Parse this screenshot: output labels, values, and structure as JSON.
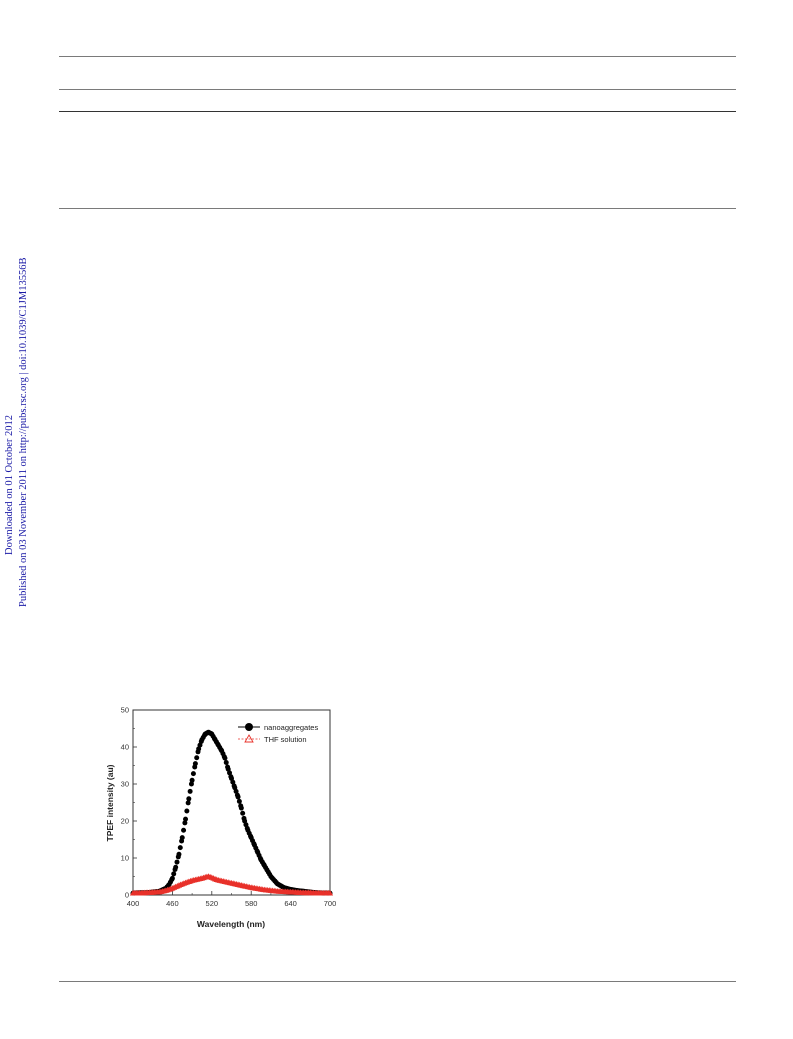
{
  "sidebar": {
    "downloaded": "Downloaded on 01 October 2012",
    "published": "Published on 03 November 2011 on http://pubs.rsc.org | doi:10.1039/C1JM13556B"
  },
  "colors": {
    "link": "#1a1aa6",
    "series_nanoaggregates": "#000000",
    "series_thf": "#e8312a"
  },
  "chart_data": {
    "type": "scatter",
    "xlabel": "Wavelength (nm)",
    "ylabel": "TPEF intensity (au)",
    "xlim": [
      400,
      700
    ],
    "ylim": [
      0,
      50
    ],
    "xticks": [
      400,
      460,
      520,
      580,
      640,
      700
    ],
    "yticks": [
      0,
      10,
      20,
      30,
      40,
      50
    ],
    "legend_position": "top-right",
    "series": [
      {
        "name": "nanoaggregates",
        "marker": "filled-circle",
        "color": "#000000",
        "x": [
          400,
          410,
          420,
          430,
          440,
          450,
          455,
          460,
          465,
          470,
          475,
          480,
          485,
          490,
          495,
          500,
          505,
          510,
          515,
          520,
          525,
          530,
          535,
          540,
          545,
          550,
          555,
          560,
          565,
          570,
          575,
          580,
          585,
          590,
          595,
          600,
          610,
          620,
          630,
          640,
          650,
          660,
          670,
          680,
          690,
          700
        ],
        "y": [
          0.5,
          0.6,
          0.6,
          0.8,
          1.0,
          1.8,
          2.8,
          4.5,
          7.5,
          11.0,
          15.5,
          20.5,
          26.0,
          31.0,
          35.5,
          39.5,
          42.0,
          43.5,
          44.0,
          43.5,
          42.0,
          40.5,
          39.0,
          37.0,
          34.0,
          31.5,
          29.0,
          26.5,
          23.5,
          20.0,
          17.5,
          15.5,
          13.5,
          11.5,
          9.5,
          8.0,
          5.0,
          3.0,
          2.0,
          1.5,
          1.2,
          1.0,
          0.8,
          0.6,
          0.5,
          0.5
        ]
      },
      {
        "name": "THF solution",
        "marker": "open-triangle",
        "color": "#e8312a",
        "x": [
          400,
          410,
          420,
          430,
          440,
          450,
          460,
          470,
          480,
          490,
          500,
          505,
          510,
          515,
          520,
          525,
          530,
          540,
          550,
          560,
          570,
          580,
          590,
          600,
          610,
          620,
          630,
          640,
          650,
          660,
          670,
          680,
          690,
          700
        ],
        "y": [
          0.5,
          0.5,
          0.6,
          0.7,
          0.8,
          1.2,
          1.8,
          2.6,
          3.3,
          3.9,
          4.3,
          4.5,
          4.8,
          5.0,
          4.7,
          4.3,
          4.0,
          3.6,
          3.2,
          2.8,
          2.4,
          2.0,
          1.7,
          1.4,
          1.2,
          1.0,
          0.9,
          0.8,
          0.7,
          0.6,
          0.6,
          0.5,
          0.5,
          0.5
        ]
      }
    ]
  }
}
